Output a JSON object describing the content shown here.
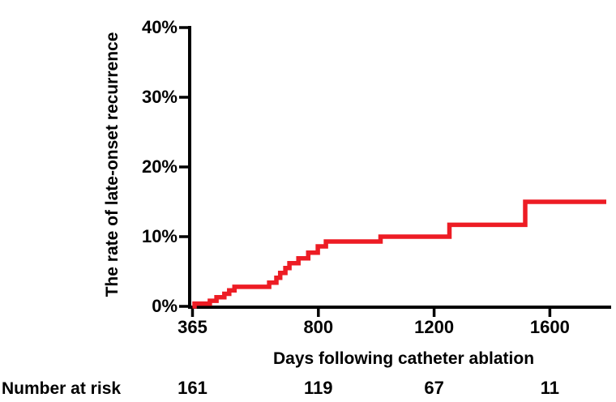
{
  "chart_data": {
    "type": "line",
    "subtype": "step-function-cumulative-incidence",
    "title": "",
    "xlabel": "Days following catheter ablation",
    "ylabel": "The rate of late-onset recurrence",
    "xlim": [
      365,
      1812
    ],
    "ylim_pct": [
      0,
      40
    ],
    "grid": false,
    "legend": "none",
    "x_ticks_days": [
      365,
      800,
      1200,
      1600
    ],
    "x_tick_labels": [
      "365",
      "800",
      "1200",
      "1600"
    ],
    "y_ticks_pct": [
      40,
      30,
      20,
      10,
      0
    ],
    "y_tick_labels": [
      "40%",
      "30%",
      "20%",
      "10%",
      "0%"
    ],
    "line_color": "#ed1c24",
    "axis_color": "#000000",
    "series": [
      {
        "name": "late-onset recurrence rate",
        "points_day_pct": [
          [
            365,
            0.0
          ],
          [
            372,
            0.4
          ],
          [
            425,
            0.8
          ],
          [
            448,
            1.3
          ],
          [
            475,
            1.8
          ],
          [
            492,
            2.3
          ],
          [
            510,
            2.8
          ],
          [
            630,
            3.4
          ],
          [
            655,
            4.1
          ],
          [
            668,
            4.8
          ],
          [
            686,
            5.5
          ],
          [
            700,
            6.2
          ],
          [
            731,
            6.9
          ],
          [
            765,
            7.7
          ],
          [
            798,
            8.6
          ],
          [
            826,
            9.3
          ],
          [
            1015,
            10.0
          ],
          [
            1253,
            11.7
          ],
          [
            1515,
            15.0
          ],
          [
            1795,
            15.0
          ]
        ]
      }
    ],
    "number_at_risk": {
      "label": "Number at risk",
      "at_days": [
        365,
        800,
        1200,
        1600
      ],
      "values": [
        "161",
        "119",
        "67",
        "11"
      ]
    }
  }
}
